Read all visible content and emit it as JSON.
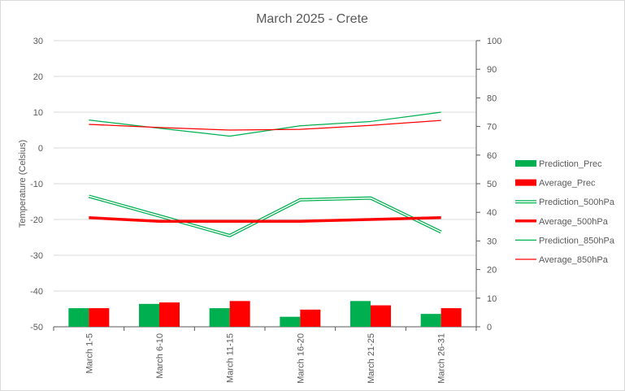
{
  "chart_data": {
    "type": "bar+line",
    "title": "March 2025 - Crete",
    "ylabel": "Temperature (Celsius)",
    "y2label": "",
    "categories": [
      "March 1-5",
      "March 6-10",
      "March 11-15",
      "March 16-20",
      "March 21-25",
      "March 26-31"
    ],
    "ylim": [
      -50,
      30
    ],
    "yticks": [
      30,
      20,
      10,
      0,
      -10,
      -20,
      -30,
      -40,
      -50
    ],
    "y2lim": [
      0,
      100
    ],
    "y2ticks": [
      100,
      90,
      80,
      70,
      60,
      50,
      40,
      30,
      20,
      10,
      0
    ],
    "grid": true,
    "legend_position": "right",
    "series": [
      {
        "name": "Prediction_Prec",
        "kind": "bar",
        "axis": "right",
        "color": "#00b050",
        "values": [
          6.5,
          8,
          6.5,
          3.5,
          9,
          4.5
        ]
      },
      {
        "name": "Average_Prec",
        "kind": "bar",
        "axis": "right",
        "color": "#ff0000",
        "values": [
          6.5,
          8.5,
          9,
          6,
          7.5,
          6.5
        ]
      },
      {
        "name": "Prediction_500hPa",
        "kind": "line",
        "style": "double",
        "axis": "left",
        "color": "#00b050",
        "values": [
          -13.5,
          -19,
          -24.5,
          -14.5,
          -14,
          -23.5
        ]
      },
      {
        "name": "Average_500hPa",
        "kind": "line",
        "style": "thick",
        "axis": "left",
        "color": "#ff0000",
        "values": [
          -19.5,
          -20.5,
          -20.5,
          -20.5,
          -20,
          -19.5
        ]
      },
      {
        "name": "Prediction_850hPa",
        "kind": "line",
        "style": "thin",
        "axis": "left",
        "color": "#00b050",
        "values": [
          7.8,
          5.5,
          3.3,
          6.2,
          7.4,
          10
        ]
      },
      {
        "name": "Average_850hPa",
        "kind": "line",
        "style": "thin",
        "axis": "left",
        "color": "#ff0000",
        "values": [
          6.6,
          5.7,
          5,
          5.2,
          6.3,
          7.7
        ]
      }
    ]
  }
}
